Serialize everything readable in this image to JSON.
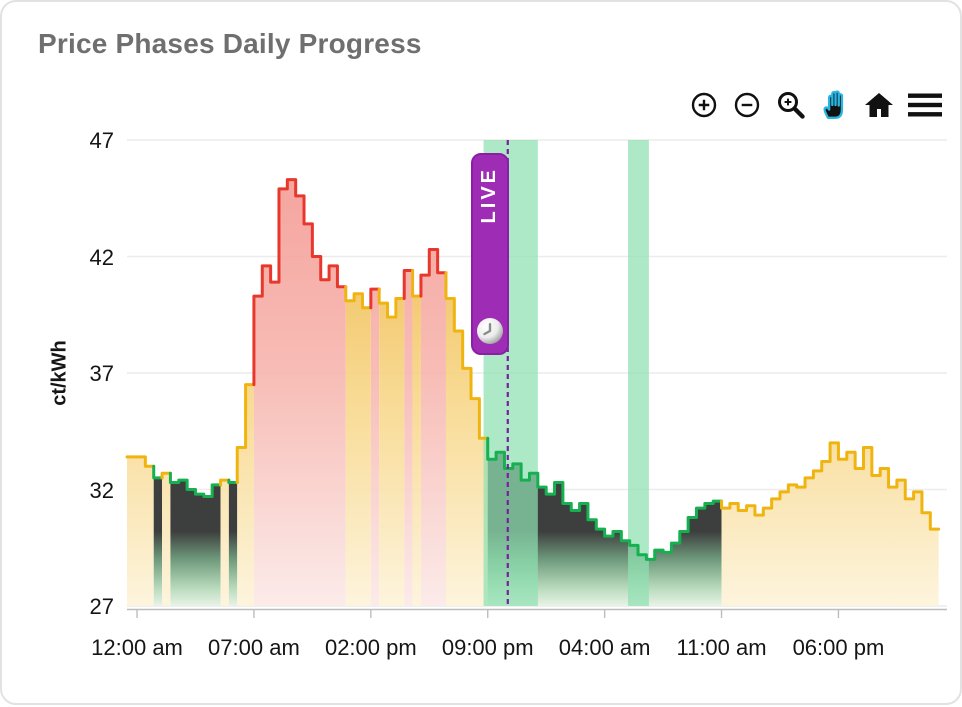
{
  "header": {
    "title": "Price Phases Daily Progress"
  },
  "modebar": {
    "icon_color": "#111111",
    "active_color": "#28b6e4",
    "buttons": [
      {
        "name": "zoom-in",
        "icon": "circle-plus-icon"
      },
      {
        "name": "zoom-out",
        "icon": "circle-minus-icon"
      },
      {
        "name": "box-zoom",
        "icon": "magnifier-plus-icon"
      },
      {
        "name": "pan",
        "icon": "hand-icon",
        "active": true
      },
      {
        "name": "reset-view",
        "icon": "home-icon"
      },
      {
        "name": "menu",
        "icon": "hamburger-icon"
      }
    ]
  },
  "live_badge": {
    "label": "LIVE",
    "icon": "clock-icon",
    "color": "#9f2cb4"
  },
  "chart_data": {
    "type": "area",
    "title": "Price Phases Daily Progress",
    "xlabel": "",
    "ylabel": "ct/kWh",
    "ylim": [
      27,
      47
    ],
    "y_ticks": [
      27,
      32,
      37,
      42,
      47
    ],
    "x_ticks": [
      {
        "hour": 0,
        "label": "12:00 am"
      },
      {
        "hour": 7,
        "label": "07:00 am"
      },
      {
        "hour": 14,
        "label": "02:00 pm"
      },
      {
        "hour": 21,
        "label": "09:00 pm"
      },
      {
        "hour": 28,
        "label": "04:00 am"
      },
      {
        "hour": 35,
        "label": "11:00 am"
      },
      {
        "hour": 42,
        "label": "06:00 pm"
      }
    ],
    "x_range_hours": [
      -0.6,
      48.5
    ],
    "start_hour": 0,
    "step_hours": 0.5,
    "grid": true,
    "legend": false,
    "values": [
      33.4,
      33.0,
      32.5,
      32.7,
      32.3,
      32.4,
      32.0,
      31.8,
      31.7,
      32.2,
      32.4,
      32.3,
      33.8,
      36.5,
      40.3,
      41.6,
      40.9,
      44.9,
      45.3,
      44.6,
      43.4,
      42.0,
      41.0,
      41.6,
      40.7,
      40.1,
      40.4,
      39.8,
      40.6,
      40.0,
      39.4,
      40.2,
      41.4,
      40.3,
      41.2,
      42.3,
      41.3,
      40.2,
      38.8,
      37.2,
      35.9,
      34.2,
      33.3,
      33.6,
      32.9,
      33.1,
      32.4,
      32.7,
      32.1,
      31.8,
      32.3,
      31.4,
      31.1,
      31.4,
      30.7,
      30.3,
      30.0,
      30.2,
      29.8,
      29.6,
      29.2,
      29.0,
      29.4,
      29.3,
      29.7,
      30.2,
      30.8,
      31.2,
      31.4,
      31.5,
      31.2,
      31.4,
      31.1,
      31.3,
      30.9,
      31.2,
      31.6,
      31.9,
      32.2,
      32.1,
      32.5,
      32.8,
      33.2,
      34.0,
      33.3,
      33.6,
      32.9,
      33.8,
      32.6,
      32.9,
      32.1,
      32.4,
      31.6,
      31.9,
      31.0,
      30.3
    ],
    "phases": [
      "N",
      "N",
      "C",
      "N",
      "C",
      "C",
      "C",
      "C",
      "C",
      "C",
      "N",
      "C",
      "N",
      "N",
      "E",
      "E",
      "E",
      "E",
      "E",
      "E",
      "E",
      "E",
      "E",
      "E",
      "E",
      "N",
      "N",
      "N",
      "E",
      "N",
      "N",
      "N",
      "E",
      "N",
      "E",
      "E",
      "E",
      "N",
      "N",
      "N",
      "N",
      "N",
      "C",
      "C",
      "C",
      "C",
      "C",
      "C",
      "C",
      "C",
      "C",
      "C",
      "C",
      "C",
      "C",
      "C",
      "C",
      "C",
      "C",
      "C",
      "C",
      "C",
      "C",
      "C",
      "C",
      "C",
      "C",
      "C",
      "C",
      "C",
      "N",
      "N",
      "N",
      "N",
      "N",
      "N",
      "N",
      "N",
      "N",
      "N",
      "N",
      "N",
      "N",
      "N",
      "N",
      "N",
      "N",
      "N",
      "N",
      "N",
      "N",
      "N",
      "N",
      "N",
      "N",
      "N"
    ],
    "phase_colors": {
      "N": "#f0b411",
      "C": "#16b050",
      "E": "#e8382d"
    },
    "fill_gradients": {
      "N": [
        [
          0,
          "#eaa92c"
        ],
        [
          0.55,
          "#f7d687"
        ],
        [
          1,
          "#fdf3d9"
        ]
      ],
      "E": [
        [
          0,
          "#f3968f"
        ],
        [
          0.5,
          "#f7b5ae"
        ],
        [
          1,
          "#fbe9e7"
        ]
      ],
      "C": [
        [
          0,
          "#3d3f3e"
        ],
        [
          0.84,
          "#3d3f3e"
        ],
        [
          0.9,
          "#6f9a7c"
        ],
        [
          0.96,
          "#b7d9ba"
        ],
        [
          1,
          "#e8f3e7"
        ]
      ]
    },
    "bands": [
      {
        "start_hour": 20.75,
        "end_hour": 24.0
      },
      {
        "start_hour": 29.4,
        "end_hour": 30.65
      }
    ],
    "band_color": "#8fe0b2",
    "live_hour": 22.2,
    "live_line_color": "#7a1fa0"
  }
}
